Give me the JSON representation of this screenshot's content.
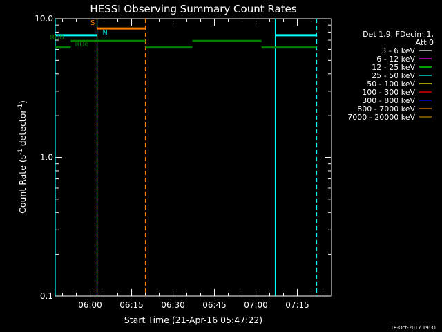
{
  "chart_data": {
    "type": "line",
    "title": "HESSI Observing Summary Count Rates",
    "xlabel": "Start Time (21-Apr-16 05:47:22)",
    "ylabel_parts": [
      "Count Rate (s",
      "-1",
      " detector",
      "-1",
      ")"
    ],
    "yscale": "log",
    "ylim": [
      0.1,
      10.0
    ],
    "xlim": [
      "05:47:22",
      "07:27:22"
    ],
    "x_ticks": [
      "06:00",
      "06:15",
      "06:30",
      "06:45",
      "07:00",
      "07:15"
    ],
    "y_ticks": [
      "0.1",
      "1.0",
      "10.0"
    ],
    "legend": {
      "header_line1": "Det 1,9, FDecim 1,",
      "header_line2": "Att 0",
      "entries": [
        {
          "label": "3 - 6 keV",
          "color": "#ffffff"
        },
        {
          "label": "6 - 12 keV",
          "color": "#ff00ff"
        },
        {
          "label": "12 - 25 keV",
          "color": "#00ff00"
        },
        {
          "label": "25 - 50 keV",
          "color": "#00ffff"
        },
        {
          "label": "50 - 100 keV",
          "color": "#ffff00"
        },
        {
          "label": "100 - 300 keV",
          "color": "#ff0000"
        },
        {
          "label": "300 - 800 keV",
          "color": "#0000ff"
        },
        {
          "label": "800 - 7000 keV",
          "color": "#ff8000"
        },
        {
          "label": "7000 - 20000 keV",
          "color": "#b08000"
        }
      ]
    },
    "flag_series": [
      {
        "name": "N",
        "color": "#00ffff",
        "y": 7.6,
        "segments": [
          [
            "05:47:22",
            "06:02:30"
          ],
          [
            "07:07:00",
            "07:22:00"
          ]
        ]
      },
      {
        "name": "S",
        "color": "#ff8000",
        "y": 8.5,
        "segments": [
          [
            "06:02:30",
            "06:20:00"
          ]
        ]
      },
      {
        "name": "RD0",
        "color": "#008000",
        "y": 6.9,
        "segments": [
          [
            "05:53:00",
            "06:20:00"
          ],
          [
            "06:37:00",
            "07:02:00"
          ]
        ]
      },
      {
        "name": "RD6",
        "color": "#008000",
        "y": 6.2,
        "segments": [
          [
            "05:47:22",
            "05:53:00"
          ],
          [
            "06:20:00",
            "06:37:00"
          ],
          [
            "07:02:00",
            "07:22:00"
          ]
        ]
      }
    ],
    "vlines": [
      {
        "time": "05:47:22",
        "color": "#00ffff",
        "style": "solid"
      },
      {
        "time": "06:02:30",
        "color": "#00ffff",
        "style": "solid"
      },
      {
        "time": "06:02:30",
        "color": "#ff8000",
        "style": "dashed"
      },
      {
        "time": "06:20:00",
        "color": "#ff8000",
        "style": "dashed"
      },
      {
        "time": "07:07:00",
        "color": "#00ffff",
        "style": "solid"
      },
      {
        "time": "07:22:00",
        "color": "#00ffff",
        "style": "dashed"
      }
    ],
    "flag_labels": [
      {
        "text": "S",
        "color": "#ff8000",
        "time": "06:00:10",
        "y": 9.0
      },
      {
        "text": "N",
        "color": "#00ffff",
        "time": "06:04:30",
        "y": 7.7
      },
      {
        "text": "RD0",
        "color": "#008000",
        "time": "05:45:30",
        "y": 7.1
      },
      {
        "text": "RD6",
        "color": "#008000",
        "time": "05:54:30",
        "y": 6.3
      }
    ]
  },
  "footer": {
    "date_stamp": "18-Oct-2017 19:31"
  }
}
